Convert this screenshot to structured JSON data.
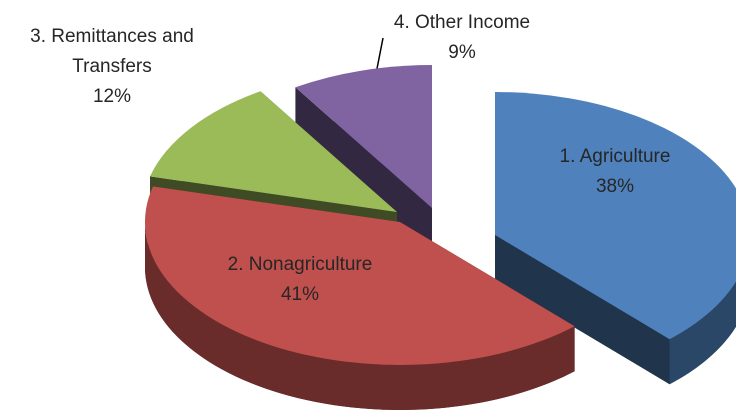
{
  "chart_data": {
    "type": "pie",
    "categories": [
      "1. Agriculture",
      "2. Nonagriculture",
      "3. Remittances and Transfers",
      "4. Other Income"
    ],
    "values": [
      38,
      41,
      12,
      9
    ],
    "value_labels": [
      "38%",
      "41%",
      "12%",
      "9%"
    ],
    "colors": [
      "#4f81bd",
      "#c0504d",
      "#9bbb59",
      "#8064a2"
    ]
  }
}
